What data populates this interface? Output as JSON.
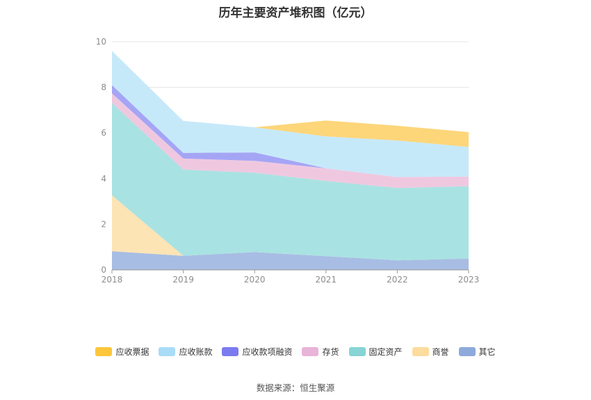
{
  "title": "历年主要资产堆积图（亿元）",
  "source": "数据来源：恒生聚源",
  "chart_data": {
    "type": "area",
    "stacked": true,
    "title": "历年主要资产堆积图（亿元）",
    "categories": [
      "2018",
      "2019",
      "2020",
      "2021",
      "2022",
      "2023"
    ],
    "ylim": [
      0,
      10
    ],
    "yticks": [
      0,
      2,
      4,
      6,
      8,
      10
    ],
    "grid": true,
    "legend_position": "bottom",
    "series": [
      {
        "name": "其它",
        "color": "#a8bde3",
        "legend_color": "#8eaadb",
        "values": [
          0.82,
          0.62,
          0.78,
          0.6,
          0.42,
          0.5
        ]
      },
      {
        "name": "商誉",
        "color": "#fde4b5",
        "legend_color": "#fddc9e",
        "values": [
          2.45,
          0.0,
          0.0,
          0.0,
          0.0,
          0.0
        ]
      },
      {
        "name": "固定资产",
        "color": "#a9e2e2",
        "legend_color": "#86d4d4",
        "values": [
          4.05,
          3.78,
          3.48,
          3.3,
          3.17,
          3.17
        ]
      },
      {
        "name": "存货",
        "color": "#efc8e0",
        "legend_color": "#e8b4d8",
        "values": [
          0.42,
          0.48,
          0.52,
          0.55,
          0.48,
          0.42
        ]
      },
      {
        "name": "应收款项融资",
        "color": "#a5a5f5",
        "legend_color": "#7b7bf0",
        "values": [
          0.36,
          0.25,
          0.37,
          0.0,
          0.0,
          0.0
        ]
      },
      {
        "name": "应收账款",
        "color": "#c6e9fa",
        "legend_color": "#a9dcf7",
        "values": [
          1.5,
          1.4,
          1.1,
          1.4,
          1.6,
          1.3
        ]
      },
      {
        "name": "应收票据",
        "color": "#fdd67a",
        "legend_color": "#fcc63c",
        "values": [
          0.0,
          0.0,
          0.0,
          0.7,
          0.65,
          0.65
        ]
      }
    ]
  }
}
